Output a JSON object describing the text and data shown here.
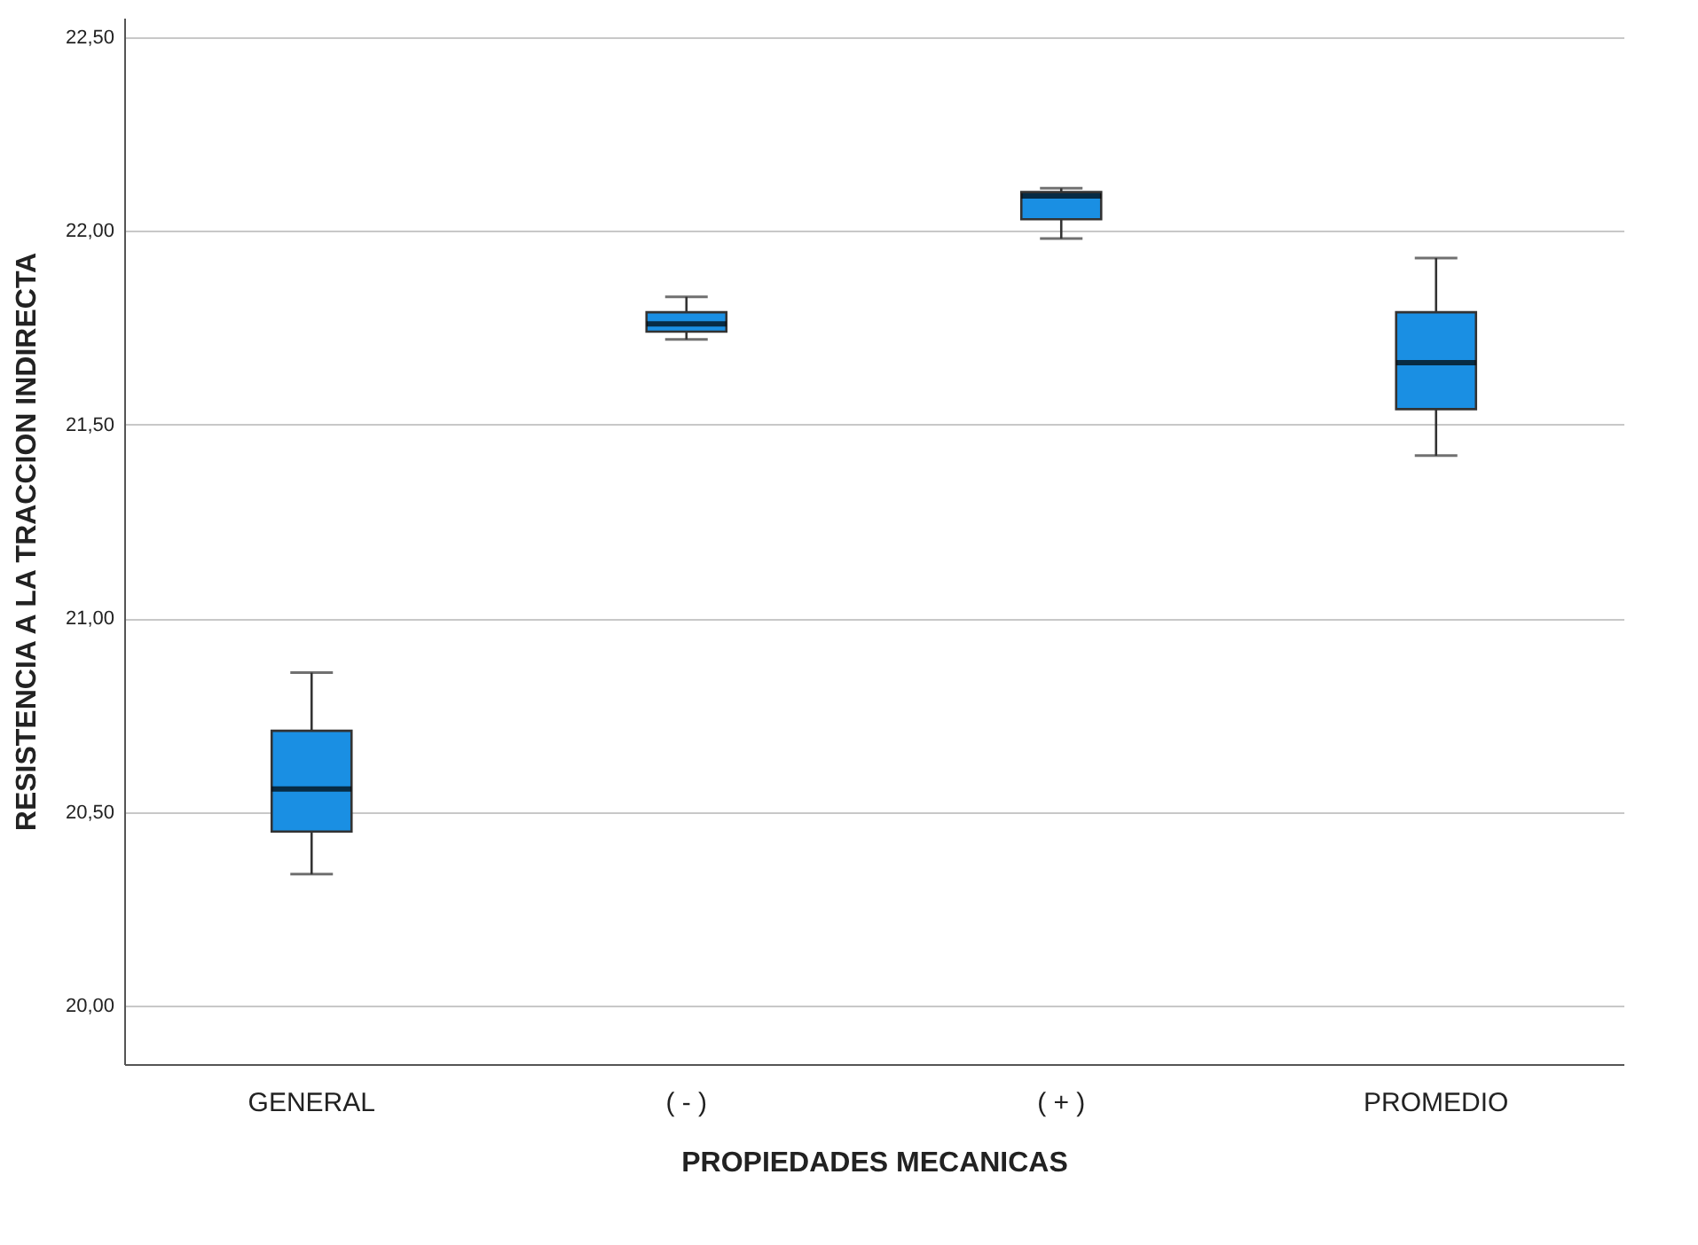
{
  "chart_data": {
    "type": "box",
    "xlabel": "PROPIEDADES MECANICAS",
    "ylabel": "RESISTENCIA A LA TRACCION INDIRECTA",
    "categories": [
      "GENERAL",
      "( - )",
      "( + )",
      "PROMEDIO"
    ],
    "color": "#1a8fe3",
    "boxes": [
      {
        "low": 20.34,
        "q1": 20.45,
        "median": 20.56,
        "q3": 20.71,
        "high": 20.86
      },
      {
        "low": 21.72,
        "q1": 21.74,
        "median": 21.76,
        "q3": 21.79,
        "high": 21.83
      },
      {
        "low": 21.98,
        "q1": 22.03,
        "median": 22.09,
        "q3": 22.1,
        "high": 22.11
      },
      {
        "low": 21.42,
        "q1": 21.54,
        "median": 21.66,
        "q3": 21.79,
        "high": 21.93
      }
    ],
    "ylim": [
      19.85,
      22.55
    ],
    "yticks": [
      {
        "value": 20,
        "label": "20,00"
      },
      {
        "value": 20.5,
        "label": "20,50"
      },
      {
        "value": 21,
        "label": "21,00"
      },
      {
        "value": 21.5,
        "label": "21,50"
      },
      {
        "value": 22,
        "label": "22,00"
      },
      {
        "value": 22.5,
        "label": "22,50"
      }
    ],
    "grid": "y"
  }
}
